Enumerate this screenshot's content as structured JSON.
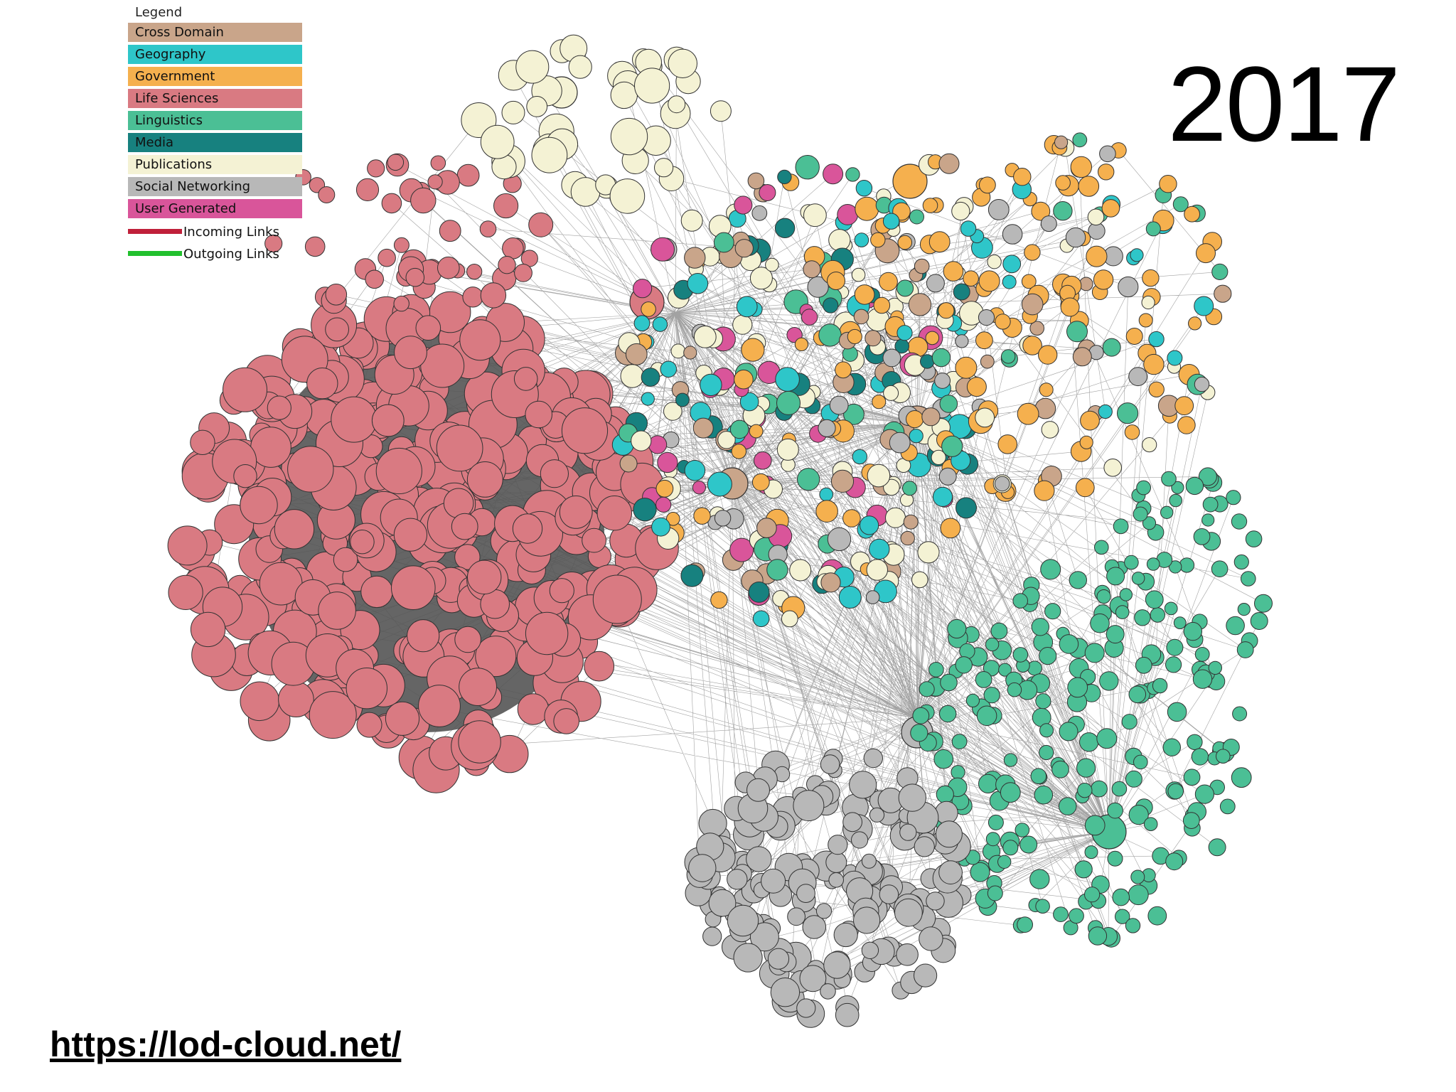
{
  "legend": {
    "title": "Legend",
    "items": [
      {
        "label": "Cross Domain",
        "color": "#c9a58a"
      },
      {
        "label": "Geography",
        "color": "#2ec6c9"
      },
      {
        "label": "Government",
        "color": "#f5b04e"
      },
      {
        "label": "Life Sciences",
        "color": "#d97a82"
      },
      {
        "label": "Linguistics",
        "color": "#4bbf95"
      },
      {
        "label": "Media",
        "color": "#17817f"
      },
      {
        "label": "Publications",
        "color": "#f4f2d4"
      },
      {
        "label": "Social Networking",
        "color": "#b8b8b8"
      },
      {
        "label": "User Generated",
        "color": "#d9559a"
      }
    ],
    "lines": [
      {
        "label": "Incoming Links",
        "color": "#c0203a"
      },
      {
        "label": "Outgoing Links",
        "color": "#22c02e"
      }
    ]
  },
  "year": "2017",
  "url": "https://lod-cloud.net/",
  "colors": {
    "edge": "#555555",
    "node_stroke": "#333333"
  }
}
